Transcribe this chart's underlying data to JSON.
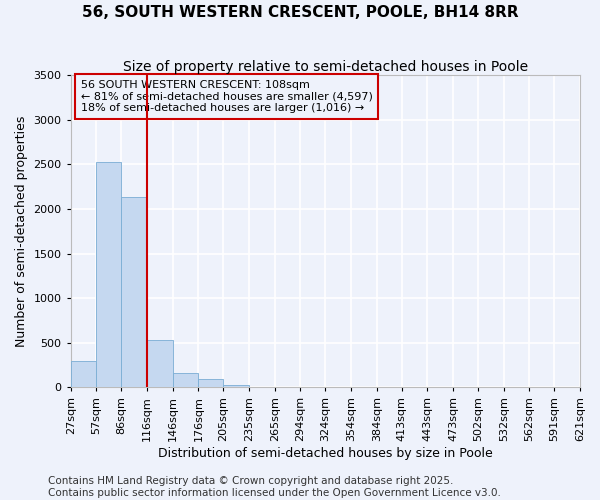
{
  "title_line1": "56, SOUTH WESTERN CRESCENT, POOLE, BH14 8RR",
  "title_line2": "Size of property relative to semi-detached houses in Poole",
  "xlabel": "Distribution of semi-detached houses by size in Poole",
  "ylabel": "Number of semi-detached properties",
  "footer_line1": "Contains HM Land Registry data © Crown copyright and database right 2025.",
  "footer_line2": "Contains public sector information licensed under the Open Government Licence v3.0.",
  "annotation_line1": "56 SOUTH WESTERN CRESCENT: 108sqm",
  "annotation_line2": "← 81% of semi-detached houses are smaller (4,597)",
  "annotation_line3": "18% of semi-detached houses are larger (1,016) →",
  "bin_edges": [
    27,
    57,
    86,
    116,
    146,
    176,
    205,
    235,
    265,
    294,
    324,
    354,
    384,
    413,
    443,
    473,
    502,
    532,
    562,
    591,
    621
  ],
  "bin_labels": [
    "27sqm",
    "57sqm",
    "86sqm",
    "116sqm",
    "146sqm",
    "176sqm",
    "205sqm",
    "235sqm",
    "265sqm",
    "294sqm",
    "324sqm",
    "354sqm",
    "384sqm",
    "413sqm",
    "443sqm",
    "473sqm",
    "502sqm",
    "532sqm",
    "562sqm",
    "591sqm",
    "621sqm"
  ],
  "bar_values": [
    300,
    2530,
    2130,
    530,
    155,
    90,
    30,
    0,
    0,
    0,
    0,
    0,
    0,
    0,
    0,
    0,
    0,
    0,
    0,
    0
  ],
  "bar_color": "#c5d8f0",
  "bar_edge_color": "#7aadd4",
  "vline_color": "#cc0000",
  "vline_x": 116,
  "ylim": [
    0,
    3500
  ],
  "yticks": [
    0,
    500,
    1000,
    1500,
    2000,
    2500,
    3000,
    3500
  ],
  "background_color": "#eef2fb",
  "grid_color": "#ffffff",
  "annotation_box_color": "#cc0000",
  "title_fontsize": 11,
  "subtitle_fontsize": 10,
  "axis_label_fontsize": 9,
  "tick_fontsize": 8,
  "annotation_fontsize": 8,
  "footer_fontsize": 7.5
}
